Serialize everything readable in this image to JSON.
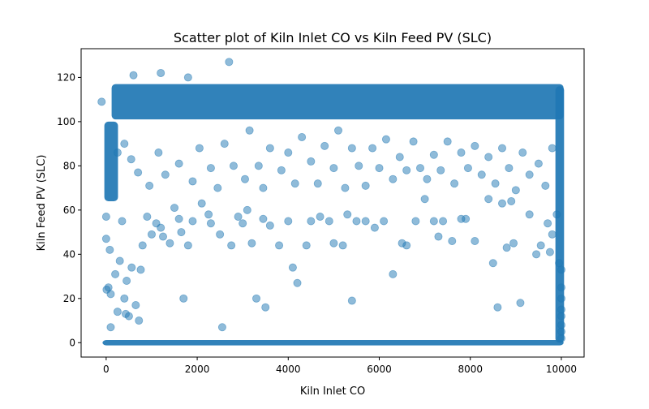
{
  "chart_data": {
    "type": "scatter",
    "title": "Scatter plot of Kiln Inlet CO vs Kiln Feed PV (SLC)",
    "xlabel": "Kiln Inlet CO",
    "ylabel": "Kiln Feed PV (SLC)",
    "xlim": [
      -550,
      10500
    ],
    "ylim": [
      -6.5,
      133
    ],
    "xticks": [
      0,
      2000,
      4000,
      6000,
      8000,
      10000
    ],
    "yticks": [
      0,
      20,
      40,
      60,
      80,
      100,
      120
    ],
    "grid": false,
    "legend": "none",
    "marker": {
      "color": "#1f77b4",
      "alpha": 0.5
    },
    "series": [
      {
        "points": [
          [
            -100,
            109
          ],
          [
            0,
            47
          ],
          [
            0,
            57
          ],
          [
            10,
            24
          ],
          [
            50,
            25
          ],
          [
            80,
            42
          ],
          [
            100,
            22
          ],
          [
            100,
            7
          ],
          [
            200,
            31
          ],
          [
            250,
            14
          ],
          [
            300,
            37
          ],
          [
            350,
            55
          ],
          [
            400,
            20
          ],
          [
            430,
            13
          ],
          [
            450,
            28
          ],
          [
            500,
            12
          ],
          [
            560,
            34
          ],
          [
            650,
            17
          ],
          [
            720,
            10
          ],
          [
            800,
            44
          ],
          [
            760,
            33
          ],
          [
            900,
            57
          ],
          [
            1000,
            49
          ],
          [
            1100,
            54
          ],
          [
            1200,
            52
          ],
          [
            1250,
            48
          ],
          [
            1400,
            45
          ],
          [
            1500,
            61
          ],
          [
            1600,
            56
          ],
          [
            1650,
            50
          ],
          [
            1700,
            20
          ],
          [
            1800,
            44
          ],
          [
            1900,
            55
          ],
          [
            2100,
            63
          ],
          [
            2250,
            58
          ],
          [
            2300,
            54
          ],
          [
            2500,
            49
          ],
          [
            2550,
            7
          ],
          [
            2700,
            127
          ],
          [
            2750,
            44
          ],
          [
            2900,
            57
          ],
          [
            3000,
            54
          ],
          [
            3100,
            60
          ],
          [
            3200,
            45
          ],
          [
            3300,
            20
          ],
          [
            3450,
            56
          ],
          [
            3500,
            16
          ],
          [
            3600,
            53
          ],
          [
            3800,
            44
          ],
          [
            4000,
            55
          ],
          [
            4100,
            34
          ],
          [
            4200,
            27
          ],
          [
            4400,
            44
          ],
          [
            4500,
            55
          ],
          [
            4700,
            57
          ],
          [
            4900,
            55
          ],
          [
            5000,
            45
          ],
          [
            5200,
            44
          ],
          [
            5300,
            58
          ],
          [
            5400,
            19
          ],
          [
            5500,
            55
          ],
          [
            5700,
            55
          ],
          [
            5900,
            52
          ],
          [
            6100,
            55
          ],
          [
            6300,
            31
          ],
          [
            6500,
            45
          ],
          [
            6600,
            44
          ],
          [
            6800,
            55
          ],
          [
            7000,
            65
          ],
          [
            7200,
            55
          ],
          [
            7300,
            48
          ],
          [
            7400,
            55
          ],
          [
            7600,
            46
          ],
          [
            7800,
            56
          ],
          [
            7900,
            56
          ],
          [
            8100,
            46
          ],
          [
            8400,
            65
          ],
          [
            8500,
            36
          ],
          [
            8600,
            16
          ],
          [
            8700,
            63
          ],
          [
            8800,
            43
          ],
          [
            8900,
            64
          ],
          [
            8950,
            45
          ],
          [
            9100,
            18
          ],
          [
            9300,
            58
          ],
          [
            9450,
            40
          ],
          [
            9550,
            44
          ],
          [
            9700,
            54
          ],
          [
            9750,
            41
          ],
          [
            9800,
            49
          ],
          [
            9900,
            58
          ],
          [
            9950,
            36
          ],
          [
            10000,
            33
          ],
          [
            10000,
            12
          ],
          [
            10000,
            20
          ],
          [
            10000,
            2
          ],
          [
            10000,
            25
          ],
          [
            10000,
            15
          ],
          [
            10000,
            5
          ],
          [
            10000,
            8
          ],
          [
            1200,
            122
          ],
          [
            600,
            121
          ],
          [
            1800,
            120
          ],
          [
            250,
            86
          ],
          [
            400,
            90
          ],
          [
            550,
            83
          ],
          [
            700,
            77
          ],
          [
            950,
            71
          ],
          [
            1150,
            86
          ],
          [
            1300,
            76
          ],
          [
            1600,
            81
          ],
          [
            1900,
            73
          ],
          [
            2050,
            88
          ],
          [
            2300,
            79
          ],
          [
            2450,
            70
          ],
          [
            2600,
            90
          ],
          [
            2800,
            80
          ],
          [
            3050,
            74
          ],
          [
            3150,
            96
          ],
          [
            3350,
            80
          ],
          [
            3450,
            70
          ],
          [
            3600,
            88
          ],
          [
            3850,
            78
          ],
          [
            4000,
            86
          ],
          [
            4150,
            72
          ],
          [
            4300,
            93
          ],
          [
            4500,
            82
          ],
          [
            4650,
            72
          ],
          [
            4800,
            89
          ],
          [
            5000,
            79
          ],
          [
            5100,
            96
          ],
          [
            5250,
            70
          ],
          [
            5400,
            88
          ],
          [
            5550,
            80
          ],
          [
            5700,
            71
          ],
          [
            5850,
            88
          ],
          [
            6000,
            79
          ],
          [
            6150,
            92
          ],
          [
            6300,
            74
          ],
          [
            6450,
            84
          ],
          [
            6600,
            78
          ],
          [
            6750,
            91
          ],
          [
            6900,
            79
          ],
          [
            7050,
            74
          ],
          [
            7200,
            85
          ],
          [
            7350,
            78
          ],
          [
            7500,
            91
          ],
          [
            7650,
            72
          ],
          [
            7800,
            86
          ],
          [
            7950,
            79
          ],
          [
            8100,
            89
          ],
          [
            8250,
            76
          ],
          [
            8400,
            84
          ],
          [
            8550,
            72
          ],
          [
            8700,
            88
          ],
          [
            8850,
            79
          ],
          [
            9000,
            69
          ],
          [
            9150,
            86
          ],
          [
            9300,
            76
          ],
          [
            9500,
            81
          ],
          [
            9650,
            71
          ],
          [
            9800,
            88
          ]
        ]
      }
    ]
  }
}
